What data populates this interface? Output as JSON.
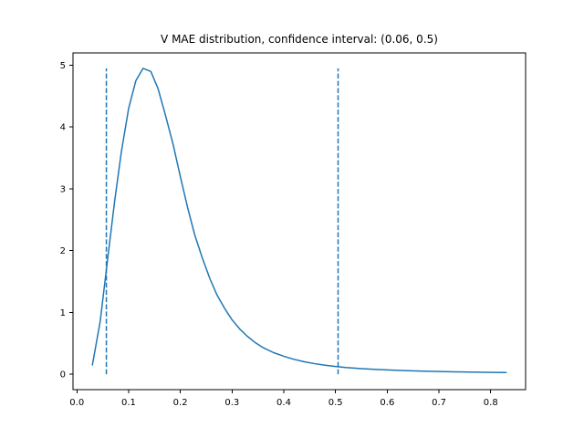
{
  "chart_data": {
    "type": "line",
    "title": "V MAE distribution, confidence interval:  (0.06, 0.5)",
    "xlabel": "",
    "ylabel": "",
    "xlim": [
      -0.0075,
      0.8675
    ],
    "ylim": [
      -0.25,
      5.2
    ],
    "xticks": [
      0.0,
      0.1,
      0.2,
      0.3,
      0.4,
      0.5,
      0.6,
      0.7,
      0.8
    ],
    "xtick_labels": [
      "0.0",
      "0.1",
      "0.2",
      "0.3",
      "0.4",
      "0.5",
      "0.6",
      "0.7",
      "0.8"
    ],
    "yticks": [
      0,
      1,
      2,
      3,
      4,
      5
    ],
    "ytick_labels": [
      "0",
      "1",
      "2",
      "3",
      "4",
      "5"
    ],
    "grid": false,
    "color": "#1f77b4",
    "series": [
      {
        "style": "solid",
        "x": [
          0.03,
          0.045,
          0.06,
          0.073,
          0.086,
          0.1,
          0.114,
          0.128,
          0.143,
          0.157,
          0.171,
          0.186,
          0.2,
          0.214,
          0.228,
          0.243,
          0.257,
          0.271,
          0.286,
          0.3,
          0.315,
          0.33,
          0.345,
          0.36,
          0.38,
          0.4,
          0.42,
          0.44,
          0.46,
          0.48,
          0.5,
          0.52,
          0.55,
          0.58,
          0.61,
          0.64,
          0.67,
          0.7,
          0.73,
          0.76,
          0.79,
          0.83
        ],
        "y": [
          0.15,
          0.85,
          1.9,
          2.8,
          3.6,
          4.3,
          4.75,
          4.95,
          4.9,
          4.62,
          4.2,
          3.72,
          3.2,
          2.7,
          2.25,
          1.87,
          1.55,
          1.28,
          1.06,
          0.88,
          0.73,
          0.61,
          0.51,
          0.43,
          0.35,
          0.29,
          0.24,
          0.2,
          0.17,
          0.145,
          0.125,
          0.108,
          0.09,
          0.076,
          0.065,
          0.056,
          0.049,
          0.043,
          0.038,
          0.034,
          0.031,
          0.027
        ]
      }
    ],
    "vertical_lines": [
      {
        "x": 0.057,
        "y_range": [
          0,
          4.95
        ],
        "style": "dashed"
      },
      {
        "x": 0.505,
        "y_range": [
          0,
          4.95
        ],
        "style": "dashed"
      }
    ]
  }
}
